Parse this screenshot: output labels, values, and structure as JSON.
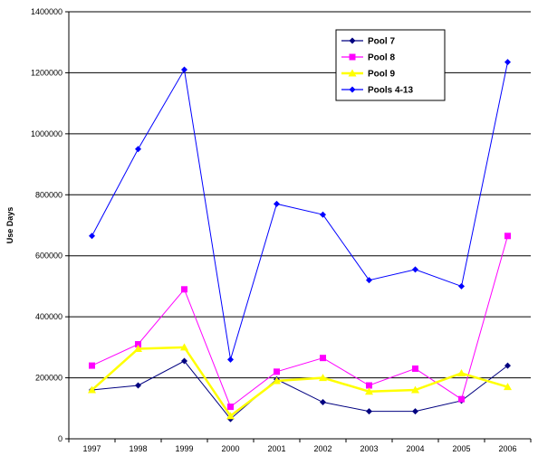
{
  "chart_data": {
    "type": "line",
    "title": "",
    "xlabel": "",
    "ylabel": "Use Days",
    "categories": [
      "1997",
      "1998",
      "1999",
      "2000",
      "2001",
      "2002",
      "2003",
      "2004",
      "2005",
      "2006"
    ],
    "ylim": [
      0,
      1400000
    ],
    "yticks": [
      "0",
      "200000",
      "400000",
      "600000",
      "800000",
      "1000000",
      "1200000",
      "1400000"
    ],
    "grid": "horizontal",
    "legend_position": "top-right",
    "series": [
      {
        "name": "Pool 7",
        "color": "#000080",
        "marker": "diamond",
        "values": [
          160000,
          175000,
          255000,
          65000,
          195000,
          120000,
          90000,
          90000,
          125000,
          240000
        ]
      },
      {
        "name": "Pool 8",
        "color": "#FF00FF",
        "marker": "square",
        "values": [
          240000,
          310000,
          490000,
          105000,
          220000,
          265000,
          175000,
          230000,
          130000,
          665000
        ]
      },
      {
        "name": "Pool 9",
        "color": "#FFFF00",
        "marker": "triangle",
        "values": [
          160000,
          295000,
          300000,
          75000,
          190000,
          200000,
          155000,
          160000,
          215000,
          170000
        ]
      },
      {
        "name": "Pools 4-13",
        "color": "#0000FF",
        "marker": "diamond",
        "values": [
          665000,
          950000,
          1210000,
          260000,
          770000,
          735000,
          520000,
          555000,
          500000,
          1235000
        ]
      }
    ]
  }
}
